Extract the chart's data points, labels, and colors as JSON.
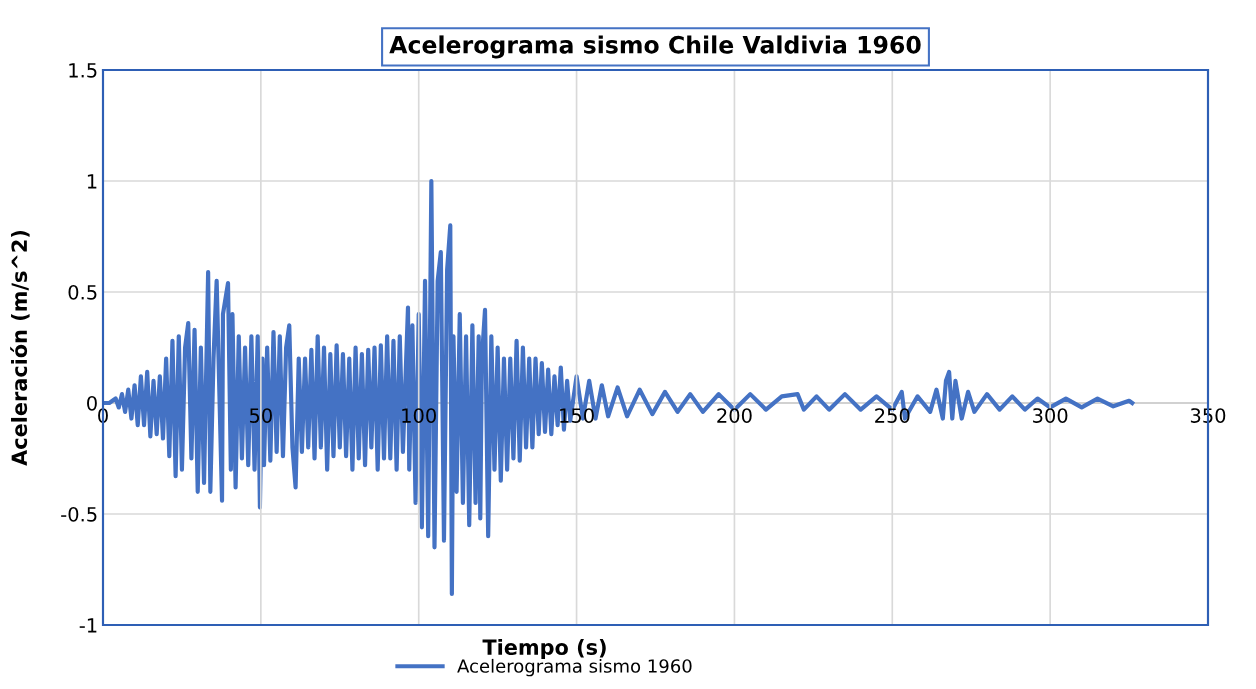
{
  "chart_data": {
    "type": "line",
    "title": "Acelerograma sismo Chile Valdivia 1960",
    "xlabel": "Tiempo (s)",
    "ylabel": "Aceleración (m/s^2)",
    "xlim": [
      0,
      350
    ],
    "xticks": [
      0,
      50,
      100,
      150,
      200,
      250,
      300,
      350
    ],
    "ylim": [
      -1,
      1.5
    ],
    "yticks": [
      -1,
      -0.5,
      0,
      0.5,
      1,
      1.5
    ],
    "grid": true,
    "legend": "bottom",
    "marker": "none",
    "line_style": "solid",
    "series": [
      {
        "name": "Acelerograma sismo 1960",
        "color": "#4472c4",
        "x": [
          0,
          2,
          4,
          5,
          6,
          7,
          8,
          9,
          10,
          11,
          12,
          13,
          14,
          15,
          16,
          17,
          18,
          19,
          20,
          21,
          22,
          23,
          24,
          25,
          26,
          27,
          28,
          29,
          30,
          31,
          32,
          33.3,
          34,
          35,
          36,
          37.7,
          38,
          39.6,
          40.5,
          41,
          42,
          43,
          44,
          45,
          46,
          47,
          48,
          49,
          49.7,
          50.5,
          51,
          52,
          53,
          54,
          55,
          56,
          57,
          58,
          59,
          60,
          61,
          62,
          63,
          64,
          65,
          66,
          67,
          68,
          69,
          70,
          71,
          72,
          73,
          74,
          75,
          76,
          77,
          78,
          79,
          80,
          81,
          82,
          83,
          84,
          85,
          86,
          87,
          88,
          89,
          90,
          91,
          92,
          93,
          94,
          95,
          96.6,
          97,
          98,
          99,
          100,
          101,
          102,
          103,
          104,
          105,
          106,
          107,
          108,
          109,
          110,
          110.5,
          111,
          112,
          113,
          114,
          115,
          116,
          117,
          118,
          119,
          119.5,
          120,
          121,
          122,
          123,
          124,
          125,
          126,
          127,
          128,
          129,
          130,
          131,
          132,
          133,
          134,
          135,
          136,
          137,
          138,
          139,
          140,
          141,
          142,
          143,
          144,
          145,
          146,
          147,
          148,
          150,
          152,
          154,
          156,
          158,
          160,
          163,
          166,
          170,
          174,
          178,
          182,
          186,
          190,
          195,
          200,
          205,
          210,
          215,
          220,
          222,
          226,
          230,
          235,
          240,
          245,
          250,
          253,
          254,
          258,
          262,
          264,
          266,
          267,
          268,
          269,
          270,
          272,
          274,
          276,
          280,
          284,
          288,
          292,
          296,
          300,
          305,
          310,
          315,
          320,
          325,
          326
        ],
        "values": [
          0,
          0,
          0.02,
          -0.02,
          0.04,
          -0.04,
          0.06,
          -0.07,
          0.08,
          -0.1,
          0.12,
          -0.1,
          0.14,
          -0.15,
          0.1,
          -0.14,
          0.12,
          -0.16,
          0.2,
          -0.24,
          0.28,
          -0.33,
          0.3,
          -0.3,
          0.25,
          0.36,
          -0.25,
          0.33,
          -0.4,
          0.25,
          -0.36,
          0.59,
          -0.4,
          0.2,
          0.55,
          -0.44,
          0.4,
          0.54,
          -0.3,
          0.4,
          -0.38,
          0.3,
          -0.25,
          0.25,
          -0.28,
          0.3,
          -0.3,
          0.3,
          -0.47,
          0.2,
          -0.28,
          0.25,
          -0.26,
          0.32,
          -0.22,
          0.3,
          -0.24,
          0.25,
          0.35,
          -0.2,
          -0.38,
          0.2,
          -0.22,
          0.2,
          -0.2,
          0.24,
          -0.25,
          0.3,
          -0.2,
          0.25,
          -0.3,
          0.22,
          -0.24,
          0.26,
          -0.2,
          0.22,
          -0.24,
          0.2,
          -0.3,
          0.25,
          -0.25,
          0.22,
          -0.28,
          0.24,
          -0.2,
          0.25,
          -0.3,
          0.26,
          -0.25,
          0.3,
          -0.25,
          0.28,
          -0.3,
          0.3,
          -0.22,
          0.43,
          -0.3,
          0.35,
          -0.45,
          0.4,
          -0.56,
          0.55,
          -0.6,
          1.0,
          -0.65,
          0.55,
          0.68,
          -0.62,
          0.6,
          0.8,
          -0.86,
          0.3,
          -0.4,
          0.4,
          -0.45,
          0.3,
          -0.55,
          0.35,
          -0.45,
          0.3,
          -0.52,
          0.2,
          0.42,
          -0.6,
          0.3,
          -0.3,
          0.25,
          -0.35,
          0.2,
          -0.3,
          0.2,
          -0.25,
          0.28,
          -0.26,
          0.25,
          -0.2,
          0.2,
          -0.2,
          0.2,
          -0.14,
          0.18,
          -0.13,
          0.15,
          -0.14,
          0.12,
          -0.1,
          0.16,
          -0.12,
          0.1,
          -0.08,
          0.12,
          -0.07,
          0.1,
          -0.07,
          0.08,
          -0.06,
          0.07,
          -0.06,
          0.06,
          -0.05,
          0.05,
          -0.04,
          0.04,
          -0.04,
          0.04,
          -0.03,
          0.04,
          -0.03,
          0.03,
          0.04,
          -0.03,
          0.03,
          -0.03,
          0.04,
          -0.03,
          0.03,
          -0.03,
          0.05,
          -0.07,
          0.03,
          -0.04,
          0.06,
          -0.07,
          0.1,
          0.14,
          -0.07,
          0.1,
          -0.07,
          0.05,
          -0.04,
          0.04,
          -0.03,
          0.03,
          -0.03,
          0.02,
          -0.02,
          0.02,
          -0.02,
          0.02,
          -0.015,
          0.01,
          0
        ]
      }
    ]
  }
}
